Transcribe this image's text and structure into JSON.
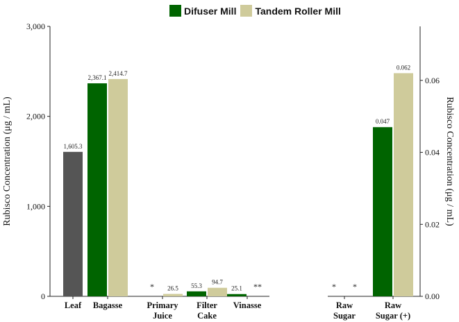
{
  "legend": {
    "items": [
      {
        "label": "Difuser Mill",
        "color": "#006400"
      },
      {
        "label": "Tandem Roller Mill",
        "color": "#CFCB9B"
      }
    ]
  },
  "colors": {
    "leaf": "#555555",
    "difuser": "#006400",
    "tandem": "#CFCB9B",
    "axis": "#222222"
  },
  "chart_data": [
    {
      "type": "bar",
      "categories": [
        "Leaf",
        "Bagasse",
        "Primary Juice",
        "Filter Cake",
        "Vinasse"
      ],
      "category_labels": [
        [
          "Leaf"
        ],
        [
          "Bagasse"
        ],
        [
          "Primary",
          "Juice"
        ],
        [
          "Filter",
          "Cake"
        ],
        [
          "Vinasse"
        ]
      ],
      "series": [
        {
          "name": "",
          "color_key": "leaf",
          "values": [
            1605.3,
            null,
            null,
            null,
            null
          ],
          "labels": [
            "1,605.3",
            "",
            "",
            "",
            ""
          ]
        },
        {
          "name": "Difuser Mill",
          "color_key": "difuser",
          "values": [
            null,
            2367.1,
            0,
            55.3,
            25.1
          ],
          "labels": [
            "",
            "2,367.1",
            "*",
            "55.3",
            "25.1"
          ]
        },
        {
          "name": "Tandem Roller Mill",
          "color_key": "tandem",
          "values": [
            null,
            2414.7,
            26.5,
            94.7,
            0
          ],
          "labels": [
            "",
            "2,414.7",
            "26.5",
            "94.7",
            "**"
          ]
        }
      ],
      "ylabel": "Rubisco Concentration  (μg / mL)",
      "ylim": [
        0,
        3000
      ],
      "yticks": [
        0,
        1000,
        2000,
        3000
      ],
      "ytick_labels": [
        "0",
        "1,000",
        "2,000",
        "3,000"
      ],
      "grid": false
    },
    {
      "type": "bar",
      "categories": [
        "Raw Sugar",
        "Raw Sugar (+)"
      ],
      "category_labels": [
        [
          "Raw",
          "Sugar"
        ],
        [
          "Raw",
          "Sugar (+)"
        ]
      ],
      "series": [
        {
          "name": "Difuser Mill",
          "color_key": "difuser",
          "values": [
            0,
            0.047
          ],
          "labels": [
            "*",
            "0.047"
          ]
        },
        {
          "name": "Tandem Roller Mill",
          "color_key": "tandem",
          "values": [
            0,
            0.062
          ],
          "labels": [
            "*",
            "0.062"
          ]
        }
      ],
      "ylabel": "Rubisco Concentration  (μg / mL)",
      "ylim": [
        0,
        0.075
      ],
      "yticks": [
        0,
        0.02,
        0.04,
        0.06
      ],
      "ytick_labels": [
        "0.00",
        "0.02",
        "0.04",
        "0.06"
      ],
      "grid": false
    }
  ]
}
